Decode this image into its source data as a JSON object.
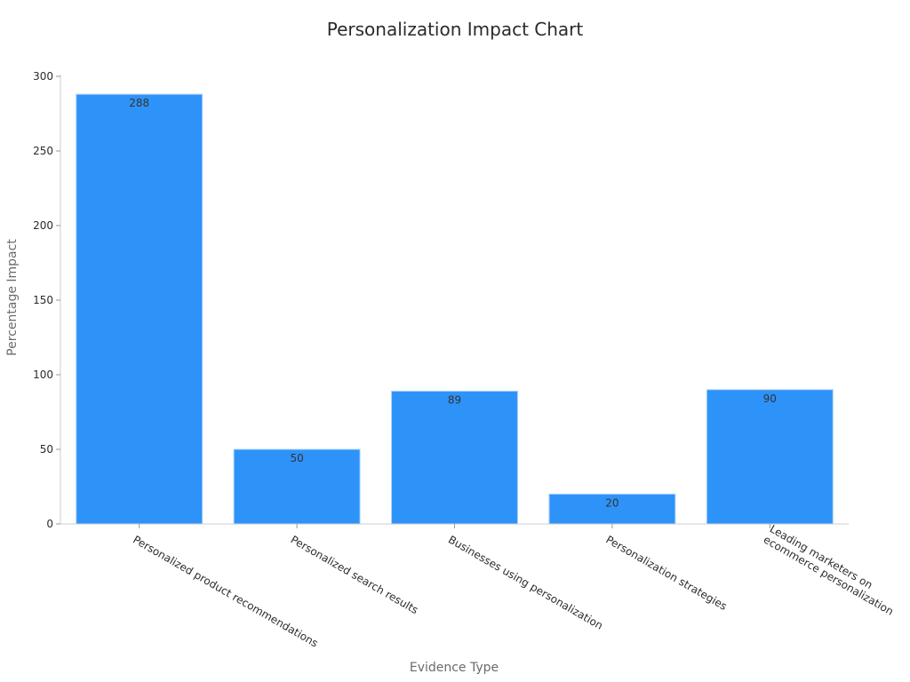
{
  "chart_data": {
    "type": "bar",
    "title": "Personalization Impact Chart",
    "xlabel": "Evidence Type",
    "ylabel": "Percentage Impact",
    "categories": [
      [
        "Personalized product recommendations"
      ],
      [
        "Personalized search results"
      ],
      [
        "Businesses using personalization"
      ],
      [
        "Personalization strategies"
      ],
      [
        "Leading marketers on",
        "ecommerce personalization"
      ]
    ],
    "values": [
      288,
      50,
      89,
      20,
      90
    ],
    "data_labels": [
      "288",
      "50",
      "89",
      "20",
      "90"
    ],
    "ylim": [
      0,
      300
    ],
    "yticks": [
      0,
      50,
      100,
      150,
      200,
      250,
      300
    ],
    "grid": false,
    "legend": "none",
    "bar_color": "#2e93f8",
    "bar_edge_color": "#a9d1fb"
  }
}
